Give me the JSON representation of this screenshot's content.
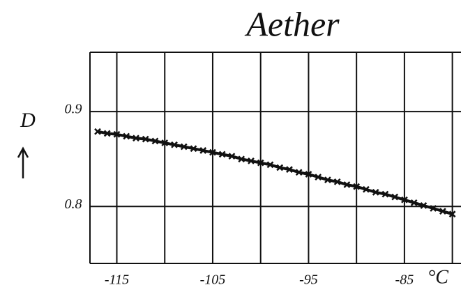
{
  "chart_data": {
    "type": "line",
    "title": "Aether",
    "x_label": "°C",
    "y_label": "D",
    "x": [
      -117,
      -116,
      -115,
      -114,
      -113,
      -112,
      -111,
      -110,
      -109,
      -108,
      -107,
      -106,
      -105,
      -104,
      -103,
      -102,
      -101,
      -100,
      -99,
      -98,
      -97,
      -96,
      -95,
      -94,
      -93,
      -92,
      -91,
      -90,
      -89,
      -88,
      -87,
      -86,
      -85,
      -84,
      -83,
      -82,
      -81,
      -80
    ],
    "series": [
      {
        "color": "#111111",
        "values": [
          0.879,
          0.877,
          0.876,
          0.874,
          0.872,
          0.871,
          0.869,
          0.867,
          0.865,
          0.863,
          0.861,
          0.859,
          0.857,
          0.855,
          0.853,
          0.85,
          0.848,
          0.846,
          0.844,
          0.841,
          0.839,
          0.836,
          0.834,
          0.831,
          0.828,
          0.826,
          0.823,
          0.821,
          0.818,
          0.815,
          0.813,
          0.81,
          0.807,
          0.804,
          0.801,
          0.798,
          0.795,
          0.792
        ]
      }
    ],
    "xlim": [
      -117.8,
      -79.1
    ],
    "ylim": [
      0.74,
      0.9625
    ],
    "xticks": [
      -115,
      -105,
      -95,
      -85
    ],
    "xminor": [
      -110,
      -100,
      -90,
      -80
    ],
    "yticks": [
      0.9,
      0.8
    ],
    "grid": true
  }
}
